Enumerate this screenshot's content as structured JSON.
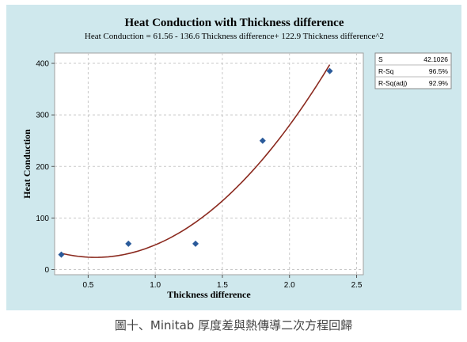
{
  "chart_data": {
    "type": "scatter",
    "title": "Heat Conduction with Thickness difference",
    "subtitle": "Heat Conduction = 61.56 - 136.6 Thickness difference+ 122.9 Thickness difference^2",
    "xlabel": "Thickness difference",
    "ylabel": "Heat Conduction",
    "xlim": [
      0.25,
      2.55
    ],
    "ylim": [
      -10,
      420
    ],
    "xticks": [
      0.5,
      1.0,
      1.5,
      2.0,
      2.5
    ],
    "xtick_labels": [
      "0.5",
      "1.0",
      "1.5",
      "2.0",
      "2.5"
    ],
    "yticks": [
      0,
      100,
      200,
      300,
      400
    ],
    "ytick_labels": [
      "0",
      "100",
      "200",
      "300",
      "400"
    ],
    "grid": true,
    "points": {
      "x": [
        0.3,
        0.8,
        1.3,
        1.8,
        2.3
      ],
      "y": [
        29,
        50,
        50,
        250,
        385
      ]
    },
    "fit": {
      "model": "quadratic",
      "coefficients": [
        61.56,
        -136.6,
        122.9
      ],
      "x_range": [
        0.3,
        2.3
      ]
    },
    "stats": [
      {
        "label": "S",
        "value": "42.1026"
      },
      {
        "label": "R-Sq",
        "value": "96.5%"
      },
      {
        "label": "R-Sq(adj)",
        "value": "92.9%"
      }
    ],
    "colors": {
      "background": "#cfe8ed",
      "plot_area": "#ffffff",
      "points": "#2a5a9a",
      "fit_line": "#8b2a1f",
      "grid": "#c8c8c8"
    }
  },
  "caption": "圖十、Minitab 厚度差與熱傳導二次方程回歸"
}
